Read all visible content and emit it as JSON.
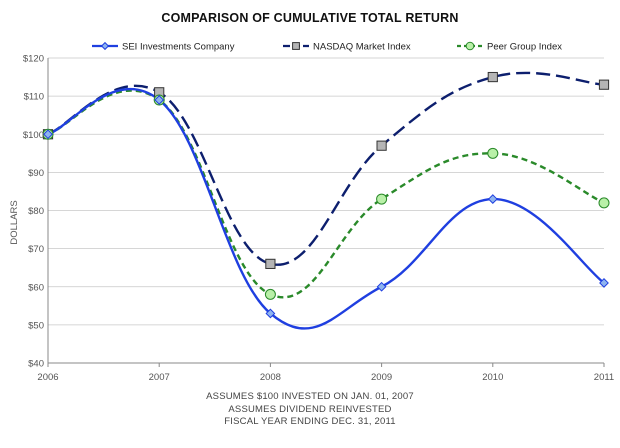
{
  "chart_data": {
    "type": "line",
    "title": "COMPARISON OF CUMULATIVE TOTAL RETURN",
    "ylabel": "DOLLARS",
    "xlabel": "",
    "categories": [
      "2006",
      "2007",
      "2008",
      "2009",
      "2010",
      "2011"
    ],
    "ylim": [
      40,
      120
    ],
    "yticks": [
      40,
      50,
      60,
      70,
      80,
      90,
      100,
      110,
      120
    ],
    "ytick_labels": [
      "$40",
      "$50",
      "$60",
      "$70",
      "$80",
      "$90",
      "$100",
      "$110",
      "$120"
    ],
    "grid": true,
    "legend_position": "top",
    "series": [
      {
        "name": "SEI Investments Company",
        "values": [
          100,
          109,
          53,
          60,
          83,
          61
        ],
        "color": "#1f3fe0",
        "dash": "solid",
        "marker": "diamond",
        "marker_fill": "#8fb4ef"
      },
      {
        "name": "NASDAQ Market Index",
        "values": [
          100,
          111,
          66,
          97,
          115,
          113
        ],
        "color": "#0d1f6e",
        "dash": "long-dash",
        "marker": "square",
        "marker_fill": "#b5b5b5"
      },
      {
        "name": "Peer Group Index",
        "values": [
          100,
          109,
          58,
          83,
          95,
          82
        ],
        "color": "#2a8a2a",
        "dash": "short-dash",
        "marker": "circle",
        "marker_fill": "#b9f0a8"
      }
    ],
    "footnotes": [
      "ASSUMES $100 INVESTED ON JAN. 01, 2007",
      "ASSUMES DIVIDEND REINVESTED",
      "FISCAL YEAR ENDING DEC. 31, 2011"
    ]
  }
}
